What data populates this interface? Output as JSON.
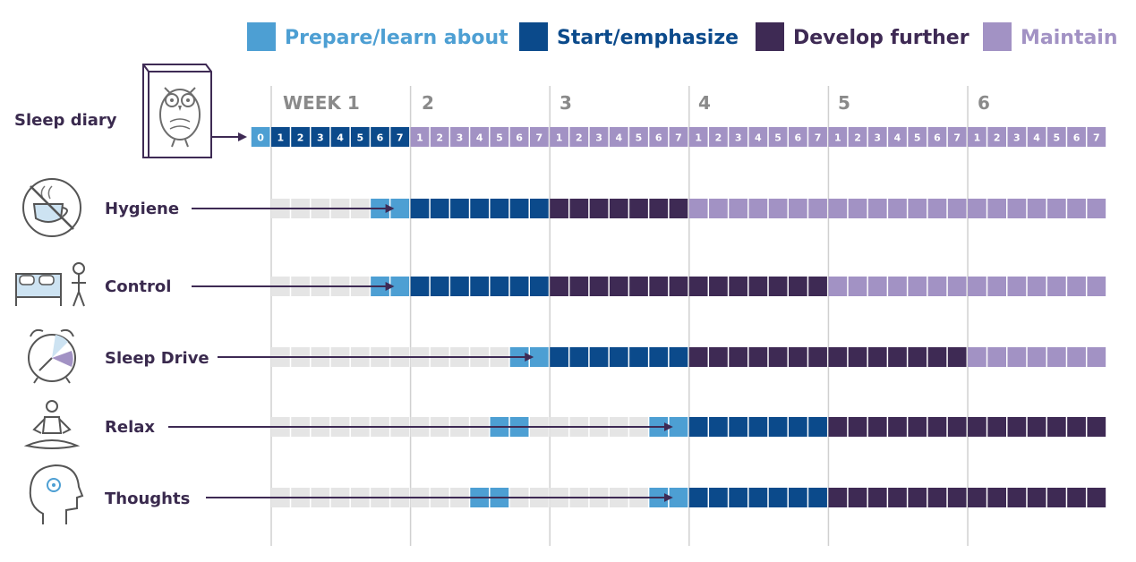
{
  "colors": {
    "prepare": "#4d9fd3",
    "start": "#0b4a8b",
    "develop": "#3e2a54",
    "maintain": "#a292c4",
    "inactive": "#e5e5e5",
    "label": "#3a2a4e",
    "week_label": "#8a8a8a",
    "grid": "#d0d0d0"
  },
  "legend": [
    {
      "key": "prepare",
      "label": "Prepare/learn about"
    },
    {
      "key": "start",
      "label": "Start/emphasize"
    },
    {
      "key": "develop",
      "label": "Develop further"
    },
    {
      "key": "maintain",
      "label": "Maintain"
    }
  ],
  "weeks": [
    "WEEK 1",
    "2",
    "3",
    "4",
    "5",
    "6"
  ],
  "days_per_week": [
    "1",
    "2",
    "3",
    "4",
    "5",
    "6",
    "7"
  ],
  "diary": {
    "label": "Sleep diary",
    "icon": "owl-book-icon",
    "day_zero": "0",
    "states": [
      "prepare",
      "start",
      "start",
      "start",
      "start",
      "start",
      "start",
      "start"
    ]
  },
  "rows": [
    {
      "label": "Hygiene",
      "icon": "no-coffee-icon",
      "segments": [
        {
          "state": "inactive",
          "from": 1,
          "to": 5
        },
        {
          "state": "prepare",
          "from": 6,
          "to": 7
        },
        {
          "state": "start",
          "from": 8,
          "to": 14
        },
        {
          "state": "develop",
          "from": 15,
          "to": 21
        },
        {
          "state": "maintain",
          "from": 22,
          "to": 42
        }
      ]
    },
    {
      "label": "Control",
      "icon": "bed-person-icon",
      "segments": [
        {
          "state": "inactive",
          "from": 1,
          "to": 5
        },
        {
          "state": "prepare",
          "from": 6,
          "to": 7
        },
        {
          "state": "start",
          "from": 8,
          "to": 14
        },
        {
          "state": "develop",
          "from": 15,
          "to": 28
        },
        {
          "state": "maintain",
          "from": 29,
          "to": 42
        }
      ]
    },
    {
      "label": "Sleep Drive",
      "icon": "alarm-clock-icon",
      "segments": [
        {
          "state": "inactive",
          "from": 1,
          "to": 12
        },
        {
          "state": "prepare",
          "from": 13,
          "to": 14
        },
        {
          "state": "start",
          "from": 15,
          "to": 21
        },
        {
          "state": "develop",
          "from": 22,
          "to": 35
        },
        {
          "state": "maintain",
          "from": 36,
          "to": 42
        }
      ]
    },
    {
      "label": "Relax",
      "icon": "meditation-icon",
      "segments": [
        {
          "state": "inactive",
          "from": 1,
          "to": 11
        },
        {
          "state": "prepare",
          "from": 12,
          "to": 13
        },
        {
          "state": "inactive",
          "from": 14,
          "to": 19
        },
        {
          "state": "prepare",
          "from": 20,
          "to": 21
        },
        {
          "state": "start",
          "from": 22,
          "to": 28
        },
        {
          "state": "develop",
          "from": 29,
          "to": 42
        }
      ]
    },
    {
      "label": "Thoughts",
      "icon": "head-gear-icon",
      "segments": [
        {
          "state": "inactive",
          "from": 1,
          "to": 10
        },
        {
          "state": "prepare",
          "from": 11,
          "to": 12
        },
        {
          "state": "inactive",
          "from": 13,
          "to": 19
        },
        {
          "state": "prepare",
          "from": 20,
          "to": 21
        },
        {
          "state": "start",
          "from": 22,
          "to": 28
        },
        {
          "state": "develop",
          "from": 29,
          "to": 42
        }
      ]
    }
  ]
}
